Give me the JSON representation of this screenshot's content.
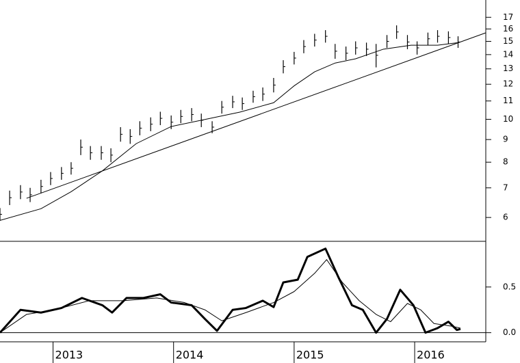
{
  "chart_data": [
    {
      "type": "price",
      "log_scale": true,
      "color": "#000000",
      "xlim": [
        2012.56,
        2016.59
      ],
      "ylim": [
        5.3,
        18.6
      ],
      "yticks": [
        6,
        7,
        8,
        9,
        10,
        11,
        12,
        13,
        14,
        15,
        16,
        17
      ],
      "x": [
        2012.56,
        2012.64,
        2012.73,
        2012.81,
        2012.9,
        2012.98,
        2013.07,
        2013.15,
        2013.23,
        2013.31,
        2013.4,
        2013.48,
        2013.56,
        2013.64,
        2013.72,
        2013.81,
        2013.89,
        2013.98,
        2014.06,
        2014.15,
        2014.23,
        2014.32,
        2014.4,
        2014.49,
        2014.57,
        2014.66,
        2014.74,
        2014.83,
        2014.91,
        2015.0,
        2015.08,
        2015.17,
        2015.26,
        2015.34,
        2015.43,
        2015.51,
        2015.6,
        2015.68,
        2015.77,
        2015.85,
        2015.94,
        2016.02,
        2016.11,
        2016.19,
        2016.28,
        2016.36
      ],
      "high": [
        6.3,
        6.9,
        7.1,
        7.0,
        7.3,
        7.6,
        7.8,
        8.0,
        9.0,
        8.7,
        8.7,
        8.6,
        9.6,
        9.5,
        9.9,
        10.1,
        10.4,
        10.2,
        10.5,
        10.6,
        10.3,
        9.9,
        11.0,
        11.3,
        11.2,
        11.6,
        11.8,
        12.4,
        13.6,
        14.2,
        15.1,
        15.6,
        15.9,
        14.8,
        14.6,
        15.0,
        14.9,
        14.8,
        15.5,
        16.3,
        15.5,
        15.0,
        15.7,
        15.9,
        15.8,
        15.4
      ],
      "low": [
        5.9,
        6.4,
        6.6,
        6.5,
        6.8,
        7.1,
        7.3,
        7.5,
        8.3,
        8.1,
        8.1,
        8.0,
        8.9,
        8.8,
        9.2,
        9.4,
        9.7,
        9.5,
        9.8,
        9.9,
        9.6,
        9.3,
        10.3,
        10.6,
        10.5,
        10.9,
        11.0,
        11.5,
        12.7,
        13.3,
        14.1,
        14.6,
        14.9,
        13.7,
        13.6,
        14.0,
        13.9,
        13.1,
        14.5,
        15.2,
        14.4,
        14.0,
        14.7,
        14.9,
        14.8,
        14.5
      ],
      "moving_average": {
        "x": [
          2012.56,
          2012.9,
          2013.15,
          2013.41,
          2013.69,
          2013.98,
          2014.26,
          2014.55,
          2014.83,
          2015.0,
          2015.17,
          2015.34,
          2015.51,
          2015.74,
          2015.97,
          2016.19,
          2016.36
        ],
        "values": [
          5.91,
          6.28,
          6.86,
          7.65,
          8.81,
          9.63,
          9.99,
          10.38,
          10.9,
          11.9,
          12.8,
          13.4,
          13.7,
          14.4,
          14.7,
          14.7,
          14.9
        ]
      },
      "trend_line": {
        "x": [
          2012.78,
          2016.59
        ],
        "values": [
          6.63,
          15.68
        ]
      }
    },
    {
      "type": "line",
      "xlim": [
        2012.56,
        2016.59
      ],
      "ylim": [
        -0.1,
        1.0
      ],
      "yticks": [
        {
          "value": 0,
          "label": "0.0"
        },
        0.5
      ],
      "xticks": [
        2013,
        2014,
        2015,
        2016
      ],
      "series": [
        {
          "color": "#000000",
          "width": 3,
          "x": [
            2012.56,
            2012.73,
            2012.9,
            2013.07,
            2013.24,
            2013.41,
            2013.49,
            2013.61,
            2013.75,
            2013.89,
            2013.98,
            2014.15,
            2014.26,
            2014.36,
            2014.49,
            2014.6,
            2014.74,
            2014.83,
            2014.91,
            2015.03,
            2015.11,
            2015.26,
            2015.37,
            2015.48,
            2015.57,
            2015.68,
            2015.77,
            2015.88,
            2015.99,
            2016.09,
            2016.19,
            2016.28,
            2016.35,
            2016.38
          ],
          "values": [
            0.0,
            0.25,
            0.22,
            0.27,
            0.38,
            0.3,
            0.22,
            0.38,
            0.38,
            0.42,
            0.33,
            0.3,
            0.15,
            0.02,
            0.25,
            0.27,
            0.35,
            0.28,
            0.55,
            0.58,
            0.83,
            0.92,
            0.6,
            0.3,
            0.25,
            0.0,
            0.15,
            0.47,
            0.3,
            0.0,
            0.05,
            0.12,
            0.03,
            0.04
          ]
        },
        {
          "color": "#000000",
          "width": 1,
          "x": [
            2012.56,
            2012.78,
            2013.01,
            2013.3,
            2013.58,
            2013.86,
            2014.09,
            2014.26,
            2014.4,
            2014.6,
            2014.83,
            2015.0,
            2015.17,
            2015.27,
            2015.4,
            2015.54,
            2015.68,
            2015.8,
            2015.94,
            2016.05,
            2016.16,
            2016.31,
            2016.38
          ],
          "values": [
            0.0,
            0.2,
            0.25,
            0.35,
            0.35,
            0.38,
            0.33,
            0.25,
            0.13,
            0.22,
            0.33,
            0.45,
            0.65,
            0.8,
            0.55,
            0.35,
            0.2,
            0.12,
            0.32,
            0.25,
            0.1,
            0.07,
            0.05
          ]
        }
      ]
    }
  ]
}
